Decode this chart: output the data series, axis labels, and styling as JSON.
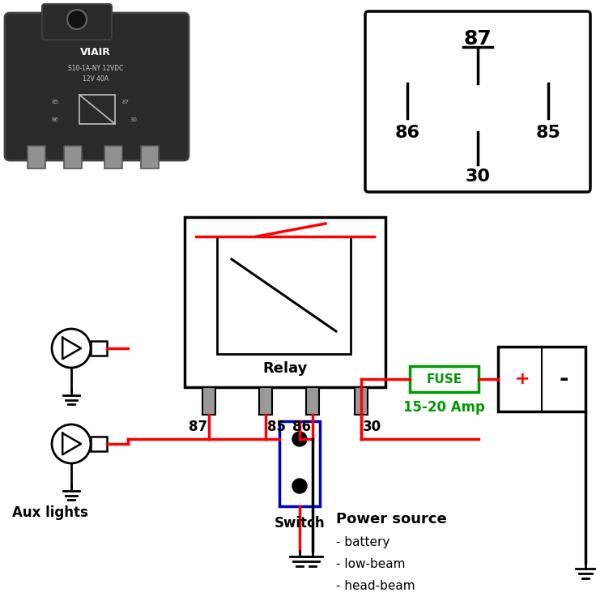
{
  "bg_color": "#ffffff",
  "red": "#ff0000",
  "black": "#000000",
  "blue": "#0000cc",
  "green": "#009900",
  "dark_relay": "#2d2d2d",
  "silver": "#aaaaaa",
  "relay_label": "Relay",
  "fuse_label": "FUSE",
  "amp_label": "15-20 Amp",
  "switch_label": "Switch",
  "aux_label": "Aux lights",
  "power_source_label": "Power source",
  "power_bullets": [
    "- battery",
    "- low-beam",
    "- head-beam"
  ],
  "viair_line1": "VIAIR",
  "viair_line2": "S10-1A-NY 12VDC",
  "viair_line3": "12V 40A",
  "pin_87": "87",
  "pin_85": "85",
  "pin_86": "86",
  "pin_30": "30"
}
